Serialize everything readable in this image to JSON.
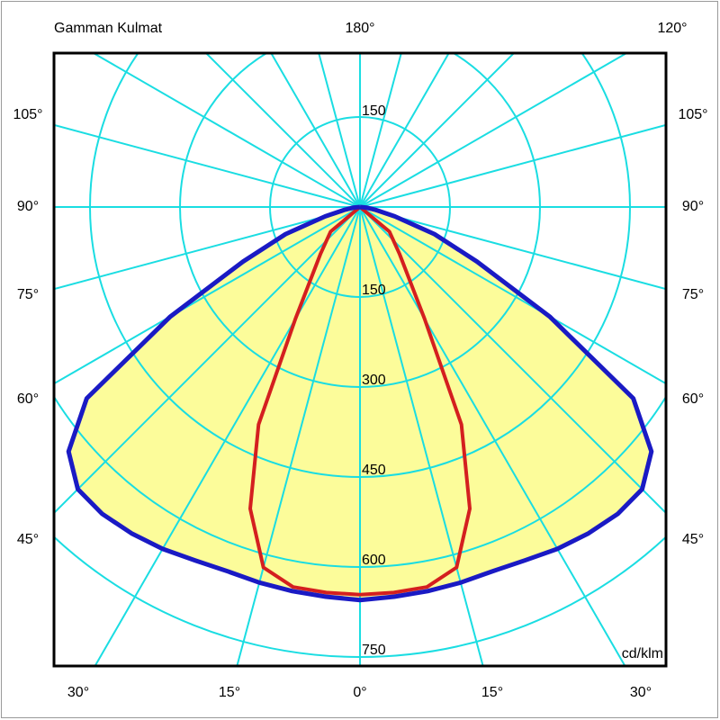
{
  "title": "Gamman Kulmat",
  "unit_label": "cd/klm",
  "top_labels": [
    "180°",
    "120°"
  ],
  "left_angle_labels": [
    "105°",
    "90°",
    "75°",
    "60°",
    "45°"
  ],
  "right_angle_labels": [
    "105°",
    "90°",
    "75°",
    "60°",
    "45°"
  ],
  "bottom_angle_labels": [
    "30°",
    "15°",
    "0°",
    "15°",
    "30°"
  ],
  "radial_labels_top": [
    "150"
  ],
  "radial_labels_bottom": [
    "150",
    "300",
    "450",
    "600",
    "750"
  ],
  "colors": {
    "grid": "#1adde2",
    "blue_curve": "#1a1ac4",
    "red_curve": "#d41f1f",
    "beam_fill": "#fcfc9a",
    "plot_border": "#000000",
    "text": "#000000"
  },
  "chart_data": {
    "type": "line",
    "subtype": "polar-intensity-distribution",
    "title": "Gamman Kulmat",
    "unit": "cd/klm",
    "gamma_axis": {
      "unit": "degrees",
      "zero_direction": "down",
      "spoke_step_deg": 15,
      "labeled_angles_deg": [
        0,
        15,
        30,
        45,
        60,
        75,
        90,
        105,
        120,
        180
      ]
    },
    "radial_axis": {
      "ticks": [
        150,
        300,
        450,
        600,
        750
      ],
      "max": 750,
      "grid": true
    },
    "legend_position": "none",
    "series": [
      {
        "name": "blue_curve",
        "color": "#1a1ac4",
        "filled": true,
        "fill_color": "#fcfc9a",
        "symmetric": true,
        "gamma_deg": [
          0,
          5,
          10,
          15,
          20,
          25,
          30,
          35,
          40,
          45,
          50,
          55,
          60,
          65,
          70,
          75,
          80,
          85,
          90
        ],
        "cd_per_klm": [
          655,
          652,
          650,
          648,
          646,
          650,
          658,
          664,
          668,
          665,
          634,
          556,
          365,
          215,
          132,
          60,
          25,
          10,
          0
        ]
      },
      {
        "name": "red_curve",
        "color": "#d41f1f",
        "filled": false,
        "symmetric": true,
        "gamma_deg": [
          0,
          5,
          10,
          15,
          20,
          25,
          30,
          40,
          50,
          90
        ],
        "cd_per_klm": [
          646,
          645,
          643,
          622,
          535,
          400,
          215,
          103,
          64,
          0
        ]
      }
    ]
  }
}
